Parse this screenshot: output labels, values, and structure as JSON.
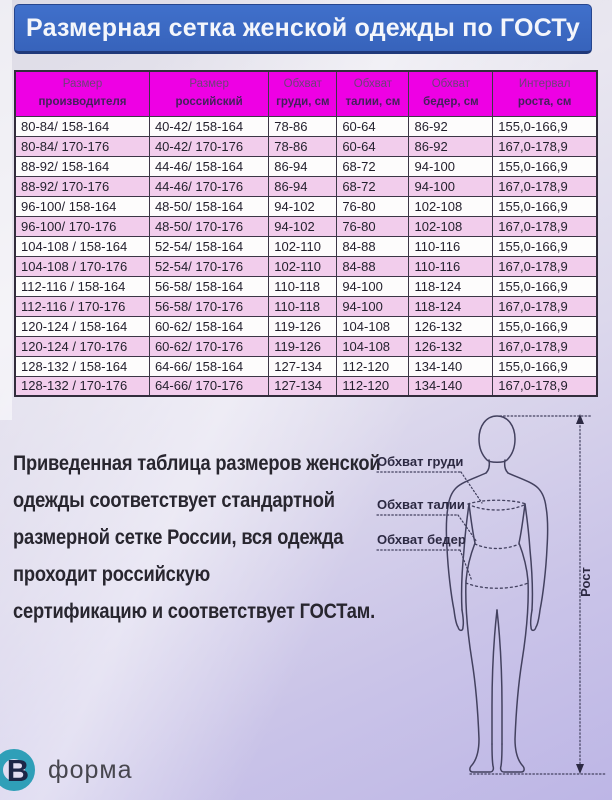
{
  "title": {
    "main": "Размерная сетка женской одежды по",
    "emphasis": "ГОСТу"
  },
  "table": {
    "headers": [
      [
        "Размер",
        "производителя"
      ],
      [
        "Размер",
        "российский"
      ],
      [
        "Обхват",
        "груди, см"
      ],
      [
        "Обхват",
        "талии, см"
      ],
      [
        "Обхват",
        "бедер, см"
      ],
      [
        "Интервал",
        "роста, см"
      ]
    ],
    "rows": [
      [
        "80-84/ 158-164",
        "40-42/ 158-164",
        "78-86",
        "60-64",
        "86-92",
        "155,0-166,9"
      ],
      [
        "80-84/ 170-176",
        "40-42/ 170-176",
        "78-86",
        "60-64",
        "86-92",
        "167,0-178,9"
      ],
      [
        "88-92/ 158-164",
        "44-46/ 158-164",
        "86-94",
        "68-72",
        "94-100",
        "155,0-166,9"
      ],
      [
        "88-92/ 170-176",
        "44-46/ 170-176",
        "86-94",
        "68-72",
        "94-100",
        "167,0-178,9"
      ],
      [
        "96-100/ 158-164",
        "48-50/ 158-164",
        "94-102",
        "76-80",
        "102-108",
        "155,0-166,9"
      ],
      [
        "96-100/ 170-176",
        "48-50/ 170-176",
        "94-102",
        "76-80",
        "102-108",
        "167,0-178,9"
      ],
      [
        "104-108 / 158-164",
        "52-54/ 158-164",
        "102-110",
        "84-88",
        "110-116",
        "155,0-166,9"
      ],
      [
        "104-108 / 170-176",
        "52-54/ 170-176",
        "102-110",
        "84-88",
        "110-116",
        "167,0-178,9"
      ],
      [
        "112-116 / 158-164",
        "56-58/ 158-164",
        "110-118",
        "94-100",
        "118-124",
        "155,0-166,9"
      ],
      [
        "112-116 / 170-176",
        "56-58/ 170-176",
        "110-118",
        "94-100",
        "118-124",
        "167,0-178,9"
      ],
      [
        "120-124 / 158-164",
        "60-62/ 158-164",
        "119-126",
        "104-108",
        "126-132",
        "155,0-166,9"
      ],
      [
        "120-124 / 170-176",
        "60-62/ 170-176",
        "119-126",
        "104-108",
        "126-132",
        "167,0-178,9"
      ],
      [
        "128-132 / 158-164",
        "64-66/ 158-164",
        "127-134",
        "112-120",
        "134-140",
        "155,0-166,9"
      ],
      [
        "128-132 / 170-176",
        "64-66/ 170-176",
        "127-134",
        "112-120",
        "134-140",
        "167,0-178,9"
      ]
    ]
  },
  "about": {
    "lines": [
      "Приведенная таблица размеров женской",
      "одежды соответствует стандартной",
      "размерной сетке России, вся одежда",
      "проходит российскую",
      "сертификацию и соответствует ГОСТам."
    ]
  },
  "figure": {
    "chest_label": "Обхват груди",
    "waist_label": "Обхват талии",
    "hips_label": "Обхват бедер",
    "height_label": "Рост"
  },
  "footer": {
    "brand": "форма",
    "logo_letter": "В"
  },
  "colors": {
    "title_bg": "#3763bb",
    "header_bg": "#ee00e4",
    "row_pink": "#f2cdec",
    "row_white": "#fdfcfc",
    "background_top": "#dddbe6",
    "background_bottom": "#bdb6e6",
    "logo_teal": "#2f9fb8",
    "logo_navy": "#1c2747"
  }
}
